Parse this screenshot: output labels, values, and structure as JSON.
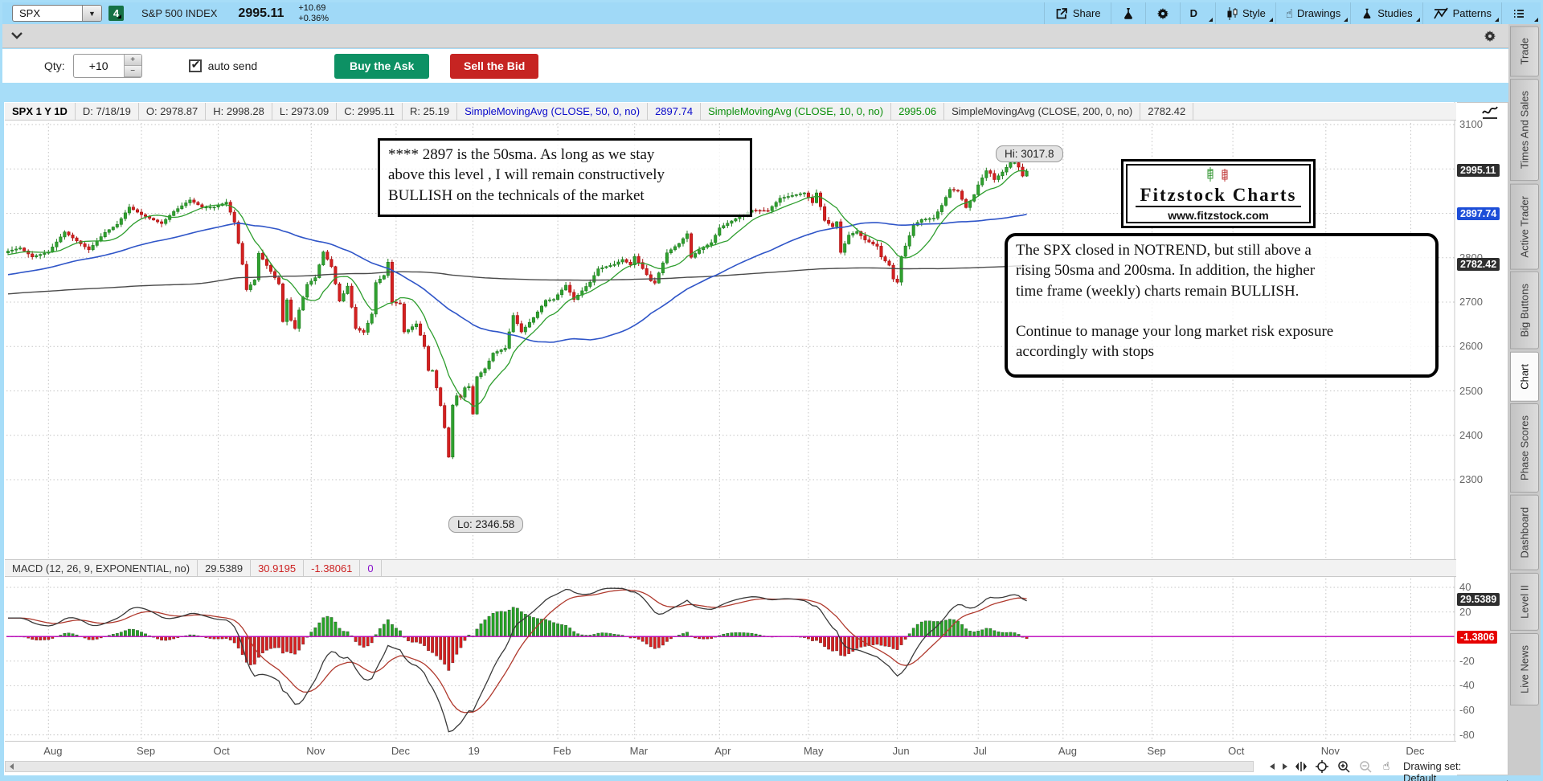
{
  "toolbar": {
    "symbol": "SPX",
    "linked_badge": "4",
    "instrument": "S&P 500 INDEX",
    "last": "2995.11",
    "change": "+10.69",
    "change_pct": "+0.36%",
    "share_label": "Share",
    "timeframe_label": "D",
    "style_label": "Style",
    "drawings_label": "Drawings",
    "studies_label": "Studies",
    "patterns_label": "Patterns"
  },
  "order_bar": {
    "qty_label": "Qty:",
    "qty_value": "+10",
    "auto_send_label": "auto send",
    "buy_label": "Buy the Ask",
    "sell_label": "Sell the Bid"
  },
  "price_header": {
    "cells": [
      "SPX 1 Y 1D",
      "D: 7/18/19",
      "O: 2978.87",
      "H: 2998.28",
      "L: 2973.09",
      "C: 2995.11",
      "R: 25.19"
    ],
    "studies": [
      {
        "label": "SimpleMovingAvg (CLOSE, 50, 0, no)",
        "value": "2897.74",
        "color": "#0a0acb"
      },
      {
        "label": "SimpleMovingAvg (CLOSE, 10, 0, no)",
        "value": "2995.06",
        "color": "#0b8f0b"
      },
      {
        "label": "SimpleMovingAvg (CLOSE, 200, 0, no)",
        "value": "2782.42",
        "color": "#333333"
      }
    ]
  },
  "macd_header": {
    "title": "MACD (12, 26, 9, EXPONENTIAL, no)",
    "values": [
      {
        "text": "29.5389",
        "color": "#333333"
      },
      {
        "text": "30.9195",
        "color": "#cc2222"
      },
      {
        "text": "-1.38061",
        "color": "#cc2222"
      },
      {
        "text": "0",
        "color": "#8811cc"
      }
    ]
  },
  "annotations": {
    "note1_lines": [
      "**** 2897 is the 50sma.   As long as we stay",
      "above this level , I will remain constructively",
      "BULLISH on the technicals of the market"
    ],
    "note2_lines": [
      "The SPX closed in NOTREND, but still above a",
      "rising 50sma and 200sma.  In addition, the higher",
      "time frame (weekly) charts remain  BULLISH.",
      "",
      "Continue to manage your long market risk exposure",
      "accordingly with stops"
    ],
    "logo": {
      "title": "Fitzstock Charts",
      "site": "www.fitzstock.com"
    },
    "hi_label": "Hi: 3017.8",
    "lo_label": "Lo: 2346.58"
  },
  "price_axis": {
    "ticks": [
      3100,
      3000,
      2900,
      2800,
      2700,
      2600,
      2500,
      2400,
      2300
    ],
    "badges": [
      {
        "text": "2995.11",
        "value": 2995.11,
        "bg": "#2e2e2e"
      },
      {
        "text": "2897.74",
        "value": 2897.74,
        "bg": "#1d4ed8"
      },
      {
        "text": "2782.42",
        "value": 2782.42,
        "bg": "#2e2e2e"
      }
    ]
  },
  "macd_axis": {
    "ticks": [
      40,
      20,
      -20,
      -40,
      -60,
      -80
    ],
    "badges": [
      {
        "text": "29.5389",
        "value": 29.5389,
        "bg": "#2e2e2e"
      },
      {
        "text": "-1.3806",
        "value": -1.3806,
        "bg": "#e60000"
      }
    ]
  },
  "x_axis": {
    "months": [
      {
        "label": "Aug",
        "day": 10
      },
      {
        "label": "Sep",
        "day": 33
      },
      {
        "label": "Oct",
        "day": 52
      },
      {
        "label": "Nov",
        "day": 75
      },
      {
        "label": "Dec",
        "day": 96
      },
      {
        "label": "19",
        "day": 115
      },
      {
        "label": "Feb",
        "day": 136
      },
      {
        "label": "Mar",
        "day": 155
      },
      {
        "label": "Apr",
        "day": 176
      },
      {
        "label": "May",
        "day": 198
      },
      {
        "label": "Jun",
        "day": 220
      },
      {
        "label": "Jul",
        "day": 240
      },
      {
        "label": "Aug",
        "day": 261
      },
      {
        "label": "Sep",
        "day": 283
      },
      {
        "label": "Oct",
        "day": 303
      },
      {
        "label": "Nov",
        "day": 326
      },
      {
        "label": "Dec",
        "day": 347
      }
    ]
  },
  "bottom_bar": {
    "drawing_set_label": "Drawing set: Default"
  },
  "sidebar": {
    "active": "Chart",
    "tabs": [
      "Trade",
      "Times And Sales",
      "Active Trader",
      "Big Buttons",
      "Chart",
      "Phase Scores",
      "Dashboard",
      "Level II",
      "Live News"
    ]
  },
  "chart_data": {
    "type": "candlestick",
    "symbol": "SPX",
    "title": "SPX 1 Y 1D",
    "ohlc_display": {
      "date": "7/18/19",
      "open": 2978.87,
      "high": 2998.28,
      "low": 2973.09,
      "close": 2995.11,
      "range": 25.19
    },
    "y_axis": {
      "min": 2280,
      "max": 3105,
      "tick_step": 100
    },
    "hi_marker": {
      "day": 249,
      "price": 3017.8
    },
    "lo_marker": {
      "day": 110,
      "price": 2346.58
    },
    "last_close": 2995.11,
    "colors": {
      "up": "#2fa12f",
      "up_stroke": "#1e7d1e",
      "down": "#d42020",
      "down_stroke": "#a81313",
      "sma10": "#2e9e2e",
      "sma50": "#2f55c8",
      "sma200": "#4a4a4a",
      "macd_value": "#3a3a3a",
      "macd_avg": "#b03a2e",
      "hist_pos": "#27a327",
      "hist_neg": "#d62020",
      "zero_line": "#bb00bb",
      "grid": "#c4c4c4"
    },
    "close_anchors": [
      [
        0,
        2815
      ],
      [
        3,
        2822
      ],
      [
        6,
        2802
      ],
      [
        10,
        2813
      ],
      [
        14,
        2858
      ],
      [
        20,
        2818
      ],
      [
        24,
        2857
      ],
      [
        27,
        2875
      ],
      [
        30,
        2914
      ],
      [
        33,
        2897
      ],
      [
        38,
        2877
      ],
      [
        41,
        2904
      ],
      [
        45,
        2930
      ],
      [
        48,
        2914
      ],
      [
        51,
        2914
      ],
      [
        54,
        2925
      ],
      [
        56,
        2880
      ],
      [
        58,
        2785
      ],
      [
        59,
        2728
      ],
      [
        61,
        2750
      ],
      [
        62,
        2810
      ],
      [
        65,
        2769
      ],
      [
        67,
        2741
      ],
      [
        68,
        2656
      ],
      [
        69,
        2705
      ],
      [
        70,
        2659
      ],
      [
        71,
        2641
      ],
      [
        72,
        2682
      ],
      [
        73,
        2711
      ],
      [
        74,
        2740
      ],
      [
        76,
        2755
      ],
      [
        78,
        2813
      ],
      [
        80,
        2780
      ],
      [
        82,
        2702
      ],
      [
        84,
        2736
      ],
      [
        86,
        2641
      ],
      [
        88,
        2632
      ],
      [
        90,
        2673
      ],
      [
        91,
        2744
      ],
      [
        93,
        2760
      ],
      [
        94,
        2790
      ],
      [
        95,
        2700
      ],
      [
        97,
        2696
      ],
      [
        98,
        2633
      ],
      [
        99,
        2638
      ],
      [
        101,
        2651
      ],
      [
        103,
        2600
      ],
      [
        104,
        2546
      ],
      [
        105,
        2546
      ],
      [
        106,
        2507
      ],
      [
        107,
        2467
      ],
      [
        108,
        2417
      ],
      [
        109,
        2351
      ],
      [
        110,
        2468
      ],
      [
        111,
        2489
      ],
      [
        112,
        2486
      ],
      [
        113,
        2507
      ],
      [
        114,
        2510
      ],
      [
        115,
        2448
      ],
      [
        116,
        2532
      ],
      [
        118,
        2550
      ],
      [
        120,
        2585
      ],
      [
        123,
        2596
      ],
      [
        125,
        2670
      ],
      [
        127,
        2633
      ],
      [
        130,
        2665
      ],
      [
        133,
        2704
      ],
      [
        135,
        2706
      ],
      [
        138,
        2738
      ],
      [
        140,
        2706
      ],
      [
        144,
        2745
      ],
      [
        146,
        2775
      ],
      [
        150,
        2785
      ],
      [
        152,
        2796
      ],
      [
        154,
        2784
      ],
      [
        155,
        2803
      ],
      [
        159,
        2748
      ],
      [
        160,
        2743
      ],
      [
        163,
        2811
      ],
      [
        166,
        2832
      ],
      [
        168,
        2854
      ],
      [
        169,
        2801
      ],
      [
        171,
        2818
      ],
      [
        174,
        2834
      ],
      [
        176,
        2867
      ],
      [
        180,
        2888
      ],
      [
        184,
        2907
      ],
      [
        188,
        2906
      ],
      [
        191,
        2934
      ],
      [
        194,
        2940
      ],
      [
        197,
        2946
      ],
      [
        199,
        2924
      ],
      [
        200,
        2946
      ],
      [
        202,
        2884
      ],
      [
        204,
        2870
      ],
      [
        205,
        2881
      ],
      [
        206,
        2812
      ],
      [
        208,
        2851
      ],
      [
        210,
        2859
      ],
      [
        212,
        2840
      ],
      [
        215,
        2826
      ],
      [
        216,
        2802
      ],
      [
        218,
        2783
      ],
      [
        219,
        2752
      ],
      [
        220,
        2745
      ],
      [
        221,
        2803
      ],
      [
        224,
        2873
      ],
      [
        226,
        2886
      ],
      [
        229,
        2889
      ],
      [
        231,
        2918
      ],
      [
        233,
        2954
      ],
      [
        235,
        2950
      ],
      [
        237,
        2913
      ],
      [
        239,
        2942
      ],
      [
        240,
        2964
      ],
      [
        242,
        2996
      ],
      [
        243,
        2990
      ],
      [
        244,
        2976
      ],
      [
        246,
        2993
      ],
      [
        248,
        3014
      ],
      [
        249,
        3014
      ],
      [
        250,
        3004
      ],
      [
        251,
        2984
      ],
      [
        252,
        2995.11
      ]
    ],
    "prehistory_anchors": [
      [
        0,
        2673
      ],
      [
        20,
        2740
      ],
      [
        40,
        2839
      ],
      [
        45,
        2872
      ],
      [
        50,
        2650
      ],
      [
        55,
        2581
      ],
      [
        60,
        2732
      ],
      [
        70,
        2644
      ],
      [
        80,
        2678
      ],
      [
        90,
        2605
      ],
      [
        100,
        2670
      ],
      [
        110,
        2655
      ],
      [
        120,
        2670
      ],
      [
        130,
        2720
      ],
      [
        140,
        2735
      ],
      [
        150,
        2755
      ],
      [
        160,
        2718
      ],
      [
        170,
        2745
      ],
      [
        180,
        2760
      ],
      [
        190,
        2800
      ],
      [
        200,
        2812
      ]
    ],
    "overlays": [
      {
        "name": "SimpleMovingAvg",
        "period": 50,
        "last": 2897.74
      },
      {
        "name": "SimpleMovingAvg",
        "period": 10,
        "last": 2995.06
      },
      {
        "name": "SimpleMovingAvg",
        "period": 200,
        "last": 2782.42
      }
    ],
    "macd": {
      "fast": 12,
      "slow": 26,
      "signal": 9,
      "type": "EXPONENTIAL",
      "value": 29.5389,
      "avg": 30.9195,
      "diff": -1.38061,
      "zero": 0
    }
  },
  "icons": {
    "share": "share-icon",
    "lab": "flask-icon",
    "gear": "gear-icon",
    "timeframe": "timeframe-d",
    "style": "candlestick-icon",
    "drawings": "hand-icon",
    "studies": "flask-icon",
    "patterns": "zigzag-icon",
    "menu": "list-icon",
    "chevron": "chevron-down-icon",
    "crosshair": "crosshair-icon",
    "zoom_in": "zoom-in-icon",
    "zoom_out": "zoom-out-icon",
    "pan_hand": "hand-tool-icon"
  }
}
